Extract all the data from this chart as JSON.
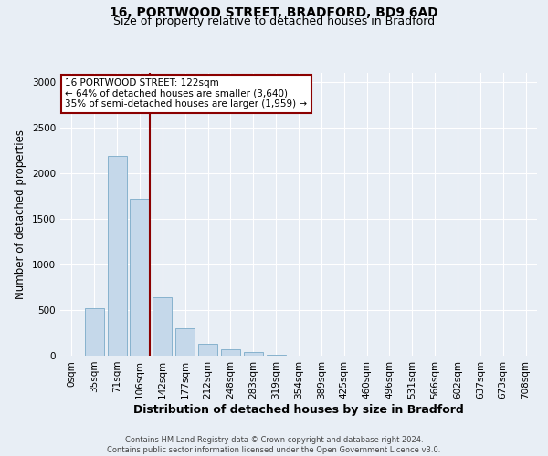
{
  "title": "16, PORTWOOD STREET, BRADFORD, BD9 6AD",
  "subtitle": "Size of property relative to detached houses in Bradford",
  "xlabel": "Distribution of detached houses by size in Bradford",
  "ylabel": "Number of detached properties",
  "footnote": "Contains HM Land Registry data © Crown copyright and database right 2024.\nContains public sector information licensed under the Open Government Licence v3.0.",
  "bar_labels": [
    "0sqm",
    "35sqm",
    "71sqm",
    "106sqm",
    "142sqm",
    "177sqm",
    "212sqm",
    "248sqm",
    "283sqm",
    "319sqm",
    "354sqm",
    "389sqm",
    "425sqm",
    "460sqm",
    "496sqm",
    "531sqm",
    "566sqm",
    "602sqm",
    "637sqm",
    "673sqm",
    "708sqm"
  ],
  "bar_values": [
    5,
    520,
    2190,
    1720,
    640,
    300,
    130,
    75,
    45,
    15,
    5,
    2,
    0,
    0,
    5,
    0,
    0,
    0,
    0,
    0,
    0
  ],
  "bar_color": "#c5d8ea",
  "bar_edge_color": "#7aaac8",
  "reference_line_color": "#8b0000",
  "ref_line_x": 3.45,
  "annotation_text_line1": "16 PORTWOOD STREET: 122sqm",
  "annotation_text_line2": "← 64% of detached houses are smaller (3,640)",
  "annotation_text_line3": "35% of semi-detached houses are larger (1,959) →",
  "annotation_box_color": "#8b0000",
  "annotation_box_fill": "#ffffff",
  "ylim": [
    0,
    3100
  ],
  "yticks": [
    0,
    500,
    1000,
    1500,
    2000,
    2500,
    3000
  ],
  "bg_color": "#e8eef5",
  "plot_bg_color": "#e8eef5",
  "title_fontsize": 10,
  "subtitle_fontsize": 9,
  "xlabel_fontsize": 9,
  "ylabel_fontsize": 8.5,
  "tick_fontsize": 7.5,
  "annot_fontsize": 7.5,
  "footnote_fontsize": 6,
  "footnote_color": "#444444"
}
